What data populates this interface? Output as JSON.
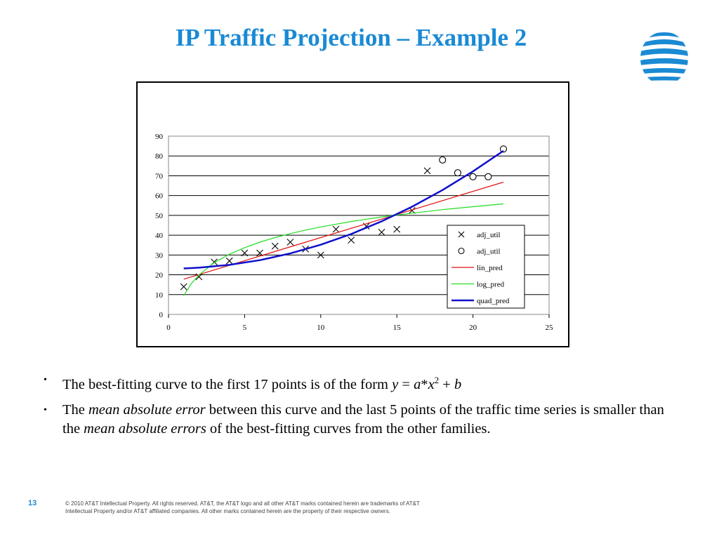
{
  "slide": {
    "title": "IP Traffic Projection – Example 2",
    "number": "13",
    "footer": "© 2010 AT&T Intellectual Property. All rights reserved. AT&T, the AT&T logo and all other AT&T marks contained herein are trademarks of AT&T Intellectual Property and/or AT&T affiliated companies. All other marks contained herein are the property of their respective owners.",
    "logo_icon": "att-globe-icon",
    "colors": {
      "title": "#1a8ad4",
      "lin": "#e01010",
      "log": "#22dd22",
      "quad": "#1010cc"
    }
  },
  "bullets": [
    {
      "p1": "The best-fitting curve to the first 17 points is of the form ",
      "formula_a": "y",
      "formula_b": " = ",
      "formula_c": "a",
      "formula_d": "*",
      "formula_e": "x",
      "formula_sup": "2",
      "formula_f": " + ",
      "formula_g": "b"
    },
    {
      "p1": "The ",
      "em1": "mean absolute error",
      "p2": " between this curve and the last 5 points of the traffic time series is smaller than the ",
      "em2": "mean absolute errors",
      "p3": " of the best-fitting curves from the other families."
    }
  ],
  "chart_data": {
    "type": "scatter",
    "title": "",
    "xlabel": "",
    "ylabel": "",
    "xlim": [
      0,
      25
    ],
    "ylim": [
      0,
      90
    ],
    "x_ticks": [
      0,
      5,
      10,
      15,
      20,
      25
    ],
    "y_ticks": [
      0,
      10,
      20,
      30,
      40,
      50,
      60,
      70,
      80,
      90
    ],
    "grid": "horizontal",
    "legend_position": "right-bottom",
    "series": [
      {
        "name": "adj_util",
        "kind": "points",
        "marker": "x",
        "x": [
          1,
          2,
          3,
          4,
          5,
          6,
          7,
          8,
          9,
          10,
          11,
          12,
          13,
          14,
          15,
          16,
          17
        ],
        "y": [
          14,
          19,
          26.5,
          27,
          31,
          31,
          34.5,
          36.5,
          33,
          30,
          43,
          37.5,
          44.5,
          41.5,
          43,
          52.5,
          72.5
        ]
      },
      {
        "name": "adj_util",
        "kind": "points",
        "marker": "o",
        "x": [
          18,
          19,
          20,
          21,
          22
        ],
        "y": [
          78,
          71.5,
          69.5,
          69.5,
          83.5
        ]
      },
      {
        "name": "lin_pred",
        "kind": "line",
        "color": "#e01010",
        "x": [
          1,
          22
        ],
        "y": [
          17.8,
          66.8
        ]
      },
      {
        "name": "log_pred",
        "kind": "line",
        "color": "#22dd22",
        "x": [
          1,
          1.5,
          2,
          3,
          4,
          5,
          6,
          7,
          8,
          9,
          10,
          12,
          14,
          16,
          18,
          20,
          22
        ],
        "y": [
          9.5,
          15.6,
          19.9,
          26.1,
          30.4,
          33.7,
          36.5,
          38.8,
          40.8,
          42.6,
          44.2,
          46.9,
          49.2,
          51.1,
          52.9,
          54.4,
          55.8
        ]
      },
      {
        "name": "quad_pred",
        "kind": "line",
        "color": "#1010cc",
        "x": [
          1,
          2,
          4,
          6,
          8,
          10,
          12,
          14,
          16,
          18,
          20,
          22
        ],
        "y": [
          23.2,
          23.6,
          25.0,
          27.4,
          30.8,
          35.2,
          40.6,
          47.0,
          54.4,
          62.8,
          72.2,
          82.6
        ]
      }
    ]
  }
}
